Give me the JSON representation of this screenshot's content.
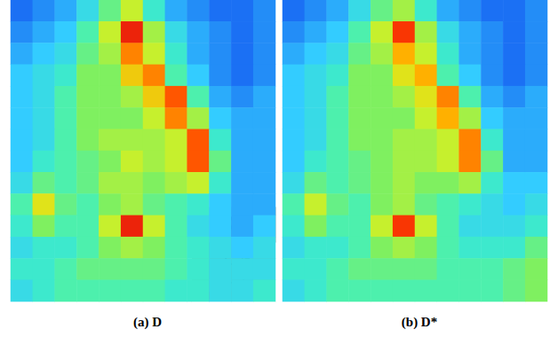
{
  "chart_data": [
    {
      "type": "heatmap",
      "title": "(a) D",
      "tick_labels": false,
      "color_range": [
        0,
        1
      ],
      "cells": [
        [
          0.1,
          0.15,
          0.2,
          0.3,
          0.45,
          0.6,
          0.35,
          0.2,
          0.15,
          0.1,
          0.1,
          0.15
        ],
        [
          0.15,
          0.2,
          0.25,
          0.4,
          0.6,
          0.95,
          0.55,
          0.3,
          0.2,
          0.15,
          0.1,
          0.15
        ],
        [
          0.2,
          0.25,
          0.3,
          0.45,
          0.55,
          0.8,
          0.6,
          0.35,
          0.2,
          0.15,
          0.1,
          0.15
        ],
        [
          0.25,
          0.3,
          0.35,
          0.5,
          0.5,
          0.7,
          0.8,
          0.4,
          0.25,
          0.15,
          0.1,
          0.15
        ],
        [
          0.25,
          0.3,
          0.4,
          0.5,
          0.5,
          0.55,
          0.7,
          0.85,
          0.4,
          0.2,
          0.15,
          0.2
        ],
        [
          0.25,
          0.3,
          0.4,
          0.5,
          0.5,
          0.5,
          0.6,
          0.8,
          0.55,
          0.25,
          0.2,
          0.2
        ],
        [
          0.25,
          0.3,
          0.4,
          0.5,
          0.55,
          0.55,
          0.55,
          0.6,
          0.85,
          0.35,
          0.2,
          0.2
        ],
        [
          0.25,
          0.35,
          0.4,
          0.45,
          0.5,
          0.6,
          0.55,
          0.6,
          0.85,
          0.45,
          0.2,
          0.2
        ],
        [
          0.3,
          0.45,
          0.4,
          0.45,
          0.55,
          0.55,
          0.5,
          0.55,
          0.6,
          0.35,
          0.2,
          0.2
        ],
        [
          0.4,
          0.65,
          0.45,
          0.4,
          0.5,
          0.55,
          0.45,
          0.4,
          0.35,
          0.25,
          0.2,
          0.2
        ],
        [
          0.35,
          0.5,
          0.4,
          0.4,
          0.6,
          0.95,
          0.6,
          0.4,
          0.3,
          0.25,
          0.2,
          0.25
        ],
        [
          0.3,
          0.35,
          0.35,
          0.4,
          0.5,
          0.55,
          0.5,
          0.4,
          0.35,
          0.3,
          0.25,
          0.3
        ],
        [
          0.35,
          0.35,
          0.4,
          0.45,
          0.45,
          0.45,
          0.45,
          0.4,
          0.35,
          0.3,
          0.3,
          0.3
        ],
        [
          0.3,
          0.35,
          0.4,
          0.4,
          0.4,
          0.4,
          0.4,
          0.35,
          0.35,
          0.3,
          0.3,
          0.35
        ]
      ]
    },
    {
      "type": "heatmap",
      "title": "(b) D*",
      "tick_labels": false,
      "color_range": [
        0,
        1
      ],
      "cells": [
        [
          0.1,
          0.15,
          0.2,
          0.3,
          0.45,
          0.55,
          0.35,
          0.2,
          0.15,
          0.1,
          0.1,
          0.15
        ],
        [
          0.15,
          0.2,
          0.25,
          0.4,
          0.6,
          0.9,
          0.55,
          0.3,
          0.2,
          0.15,
          0.1,
          0.15
        ],
        [
          0.2,
          0.25,
          0.3,
          0.45,
          0.55,
          0.75,
          0.6,
          0.35,
          0.2,
          0.15,
          0.1,
          0.15
        ],
        [
          0.25,
          0.3,
          0.35,
          0.5,
          0.5,
          0.65,
          0.75,
          0.4,
          0.25,
          0.15,
          0.1,
          0.15
        ],
        [
          0.25,
          0.3,
          0.4,
          0.5,
          0.5,
          0.55,
          0.65,
          0.8,
          0.4,
          0.2,
          0.15,
          0.2
        ],
        [
          0.25,
          0.3,
          0.4,
          0.5,
          0.5,
          0.5,
          0.6,
          0.75,
          0.55,
          0.25,
          0.2,
          0.2
        ],
        [
          0.25,
          0.3,
          0.4,
          0.5,
          0.5,
          0.55,
          0.55,
          0.6,
          0.8,
          0.35,
          0.2,
          0.2
        ],
        [
          0.25,
          0.35,
          0.4,
          0.45,
          0.5,
          0.55,
          0.55,
          0.6,
          0.8,
          0.45,
          0.2,
          0.2
        ],
        [
          0.3,
          0.45,
          0.4,
          0.45,
          0.5,
          0.55,
          0.5,
          0.5,
          0.55,
          0.35,
          0.25,
          0.25
        ],
        [
          0.4,
          0.6,
          0.45,
          0.4,
          0.5,
          0.55,
          0.45,
          0.4,
          0.35,
          0.3,
          0.25,
          0.3
        ],
        [
          0.35,
          0.5,
          0.4,
          0.4,
          0.6,
          0.9,
          0.6,
          0.4,
          0.3,
          0.3,
          0.3,
          0.35
        ],
        [
          0.3,
          0.35,
          0.35,
          0.4,
          0.5,
          0.55,
          0.5,
          0.4,
          0.35,
          0.35,
          0.35,
          0.45
        ],
        [
          0.35,
          0.35,
          0.4,
          0.45,
          0.45,
          0.45,
          0.45,
          0.4,
          0.4,
          0.4,
          0.45,
          0.5
        ],
        [
          0.3,
          0.35,
          0.4,
          0.4,
          0.4,
          0.4,
          0.4,
          0.4,
          0.4,
          0.4,
          0.45,
          0.5
        ]
      ]
    }
  ]
}
